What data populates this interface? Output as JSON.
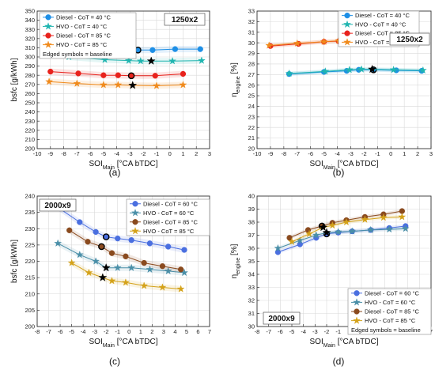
{
  "chart_data": [
    {
      "type": "line",
      "panel_label": "(a)",
      "tag": "1250x2",
      "ylabel": "bsfc [g/kWh]",
      "xlabel_main": "SOI",
      "xlabel_sub": "Main",
      "xlabel_rest": " [°CA bTDC]",
      "xlim": [
        -10,
        3
      ],
      "ylim": [
        200,
        350
      ],
      "xticks": [
        -10,
        -9,
        -8,
        -7,
        -6,
        -5,
        -4,
        -3,
        -2,
        -1,
        0,
        1,
        2,
        3
      ],
      "yticks": [
        200,
        210,
        220,
        230,
        240,
        250,
        260,
        270,
        280,
        290,
        300,
        310,
        320,
        330,
        340,
        350
      ],
      "legend_note": "Edged symbols = baseline",
      "series": [
        {
          "name": "Diesel - CoT = 40 °C",
          "color": "#1e8fe6",
          "marker": "circle",
          "x": [
            -7.6,
            -5.0,
            -3.3,
            -2.4,
            -1.3,
            0.4,
            2.3
          ],
          "y": [
            312,
            310,
            308.5,
            307.5,
            307.5,
            308.5,
            308.5
          ],
          "baseline_index": 3
        },
        {
          "name": "HVO - CoT = 40 °C",
          "color": "#20b5b0",
          "marker": "star",
          "x": [
            -7.6,
            -4.9,
            -3.1,
            -2.2,
            -1.4,
            0.2,
            2.4
          ],
          "y": [
            300,
            297,
            296,
            295.5,
            295.5,
            295.5,
            296
          ],
          "baseline_index": 4
        },
        {
          "name": "Diesel - CoT = 85 °C",
          "color": "#e8221c",
          "marker": "circle",
          "x": [
            -9.0,
            -6.9,
            -5.0,
            -3.9,
            -2.9,
            -1.1,
            1.0
          ],
          "y": [
            284,
            282,
            280,
            280,
            279.5,
            279.5,
            281.5
          ],
          "baseline_index": 4
        },
        {
          "name": "HVO - CoT = 85 °C",
          "color": "#f08a1c",
          "marker": "star",
          "x": [
            -9.1,
            -7.0,
            -5.0,
            -3.9,
            -2.8,
            -1.0,
            1.0
          ],
          "y": [
            273,
            271,
            269.5,
            269.5,
            269,
            268.5,
            269.5
          ],
          "baseline_index": 4
        }
      ]
    },
    {
      "type": "line",
      "panel_label": "(b)",
      "tag": "1250x2",
      "ylabel_main": "η",
      "ylabel_sub": "engine",
      "ylabel_rest": " [%]",
      "xlabel_main": "SOI",
      "xlabel_sub": "Main",
      "xlabel_rest": " [°CA bTDC]",
      "xlim": [
        -10,
        3
      ],
      "ylim": [
        20,
        33
      ],
      "xticks": [
        -10,
        -9,
        -8,
        -7,
        -6,
        -5,
        -4,
        -3,
        -2,
        -1,
        0,
        1,
        2,
        3
      ],
      "yticks": [
        20,
        21,
        22,
        23,
        24,
        25,
        26,
        27,
        28,
        29,
        30,
        31,
        32,
        33
      ],
      "series": [
        {
          "name": "Diesel - CoT = 40 °C",
          "color": "#1e8fe6",
          "marker": "circle",
          "x": [
            -7.6,
            -5.0,
            -3.3,
            -2.4,
            -1.3,
            0.4,
            2.3
          ],
          "y": [
            27.05,
            27.25,
            27.35,
            27.45,
            27.45,
            27.4,
            27.35
          ],
          "baseline_index": 4
        },
        {
          "name": "HVO - CoT = 40 °C",
          "color": "#20b5b0",
          "marker": "star",
          "x": [
            -7.6,
            -4.9,
            -3.1,
            -2.2,
            -1.4,
            0.2,
            2.4
          ],
          "y": [
            27.1,
            27.3,
            27.45,
            27.5,
            27.5,
            27.45,
            27.4
          ],
          "baseline_index": 4
        },
        {
          "name": "Diesel - CoT = 85 °C",
          "color": "#e8221c",
          "marker": "circle",
          "x": [
            -9.0,
            -6.9,
            -5.0,
            -3.9,
            -2.9,
            -1.1,
            1.0
          ],
          "y": [
            29.7,
            29.9,
            30.1,
            30.15,
            30.15,
            30.15,
            29.95
          ],
          "baseline_index": 4
        },
        {
          "name": "HVO - CoT = 85 °C",
          "color": "#f08a1c",
          "marker": "star",
          "x": [
            -9.1,
            -7.0,
            -5.0,
            -3.9,
            -2.8,
            -1.0,
            1.0
          ],
          "y": [
            29.75,
            29.95,
            30.1,
            30.2,
            30.2,
            30.2,
            30.1
          ],
          "baseline_index": 4
        }
      ]
    },
    {
      "type": "line",
      "panel_label": "(c)",
      "tag": "2000x9",
      "ylabel": "bsfc [g/kWh]",
      "xlabel_main": "SOI",
      "xlabel_sub": "Main",
      "xlabel_rest": " [°CA bTDC]",
      "xlim": [
        -8,
        7
      ],
      "ylim": [
        200,
        240
      ],
      "xticks": [
        -8,
        -7,
        -6,
        -5,
        -4,
        -3,
        -2,
        -1,
        0,
        1,
        2,
        3,
        4,
        5,
        6,
        7
      ],
      "yticks": [
        200,
        205,
        210,
        215,
        220,
        225,
        230,
        235,
        240
      ],
      "legend_note": "",
      "series": [
        {
          "name": "Diesel - CoT = 60 °C",
          "color": "#4a6fe0",
          "marker": "circle",
          "x": [
            -6.2,
            -4.3,
            -2.9,
            -2.0,
            -1.0,
            0.2,
            1.8,
            3.4,
            4.8
          ],
          "y": [
            236.5,
            232,
            229,
            227.5,
            227,
            226.5,
            225.5,
            224.5,
            223.5
          ],
          "baseline_index": 3
        },
        {
          "name": "HVO - CoT = 60 °C",
          "color": "#4a8fa8",
          "marker": "star",
          "x": [
            -6.2,
            -4.3,
            -2.9,
            -2.0,
            -1.0,
            0.2,
            1.8,
            3.4,
            4.8
          ],
          "y": [
            225.5,
            222,
            220,
            218,
            218,
            218,
            217.5,
            217,
            216.5
          ],
          "baseline_index": 3
        },
        {
          "name": "Diesel - CoT = 85 °C",
          "color": "#8a4a1e",
          "marker": "circle",
          "x": [
            -5.2,
            -3.6,
            -2.4,
            -1.5,
            -0.3,
            1.3,
            2.9,
            4.5
          ],
          "y": [
            229.5,
            226,
            224.5,
            222.5,
            221.5,
            219.5,
            218.5,
            217.5
          ],
          "baseline_index": 2
        },
        {
          "name": "HVO - CoT = 85 °C",
          "color": "#d4a21a",
          "marker": "star",
          "x": [
            -5.0,
            -3.5,
            -2.3,
            -1.5,
            -0.3,
            1.3,
            2.9,
            4.5
          ],
          "y": [
            219.5,
            216.5,
            215,
            214,
            213.5,
            212.5,
            212,
            211.5
          ],
          "baseline_index": 2
        }
      ]
    },
    {
      "type": "line",
      "panel_label": "(d)",
      "tag": "2000x9",
      "ylabel_main": "η",
      "ylabel_sub": "engine",
      "ylabel_rest": " [%]",
      "xlabel_main": "SOI",
      "xlabel_sub": "Main",
      "xlabel_rest": " [°CA bTDC]",
      "xlim": [
        -8,
        7
      ],
      "ylim": [
        30,
        40
      ],
      "xticks": [
        -8,
        -7,
        -6,
        -5,
        -4,
        -3,
        -2,
        -1,
        0,
        1,
        2,
        3,
        4,
        5,
        6,
        7
      ],
      "yticks": [
        30,
        31,
        32,
        33,
        34,
        35,
        36,
        37,
        38,
        39,
        40
      ],
      "legend_note": "Edged symbols = baseline",
      "series": [
        {
          "name": "Diesel - CoT = 60 °C",
          "color": "#4a6fe0",
          "marker": "circle",
          "x": [
            -6.2,
            -4.3,
            -2.9,
            -2.0,
            -1.0,
            0.2,
            1.8,
            3.4,
            4.8
          ],
          "y": [
            35.7,
            36.3,
            36.8,
            37.1,
            37.2,
            37.3,
            37.4,
            37.55,
            37.7
          ],
          "baseline_index": 3
        },
        {
          "name": "HVO - CoT = 60 °C",
          "color": "#4a8fa8",
          "marker": "star",
          "x": [
            -6.2,
            -4.3,
            -2.9,
            -2.0,
            -1.0,
            0.2,
            1.8,
            3.4,
            4.8
          ],
          "y": [
            36.0,
            36.6,
            37.0,
            37.2,
            37.25,
            37.3,
            37.4,
            37.45,
            37.5
          ],
          "baseline_index": 3
        },
        {
          "name": "Diesel - CoT = 85 °C",
          "color": "#8a4a1e",
          "marker": "circle",
          "x": [
            -5.2,
            -3.6,
            -2.4,
            -1.5,
            -0.3,
            1.3,
            2.9,
            4.5
          ],
          "y": [
            36.8,
            37.4,
            37.7,
            37.95,
            38.15,
            38.4,
            38.6,
            38.85
          ],
          "baseline_index": 2
        },
        {
          "name": "HVO - CoT = 85 °C",
          "color": "#d4a21a",
          "marker": "star",
          "x": [
            -5.0,
            -3.5,
            -2.3,
            -1.5,
            -0.3,
            1.3,
            2.9,
            4.5
          ],
          "y": [
            36.5,
            37.1,
            37.6,
            37.75,
            38.0,
            38.2,
            38.35,
            38.4
          ],
          "baseline_index": 2
        }
      ]
    }
  ]
}
